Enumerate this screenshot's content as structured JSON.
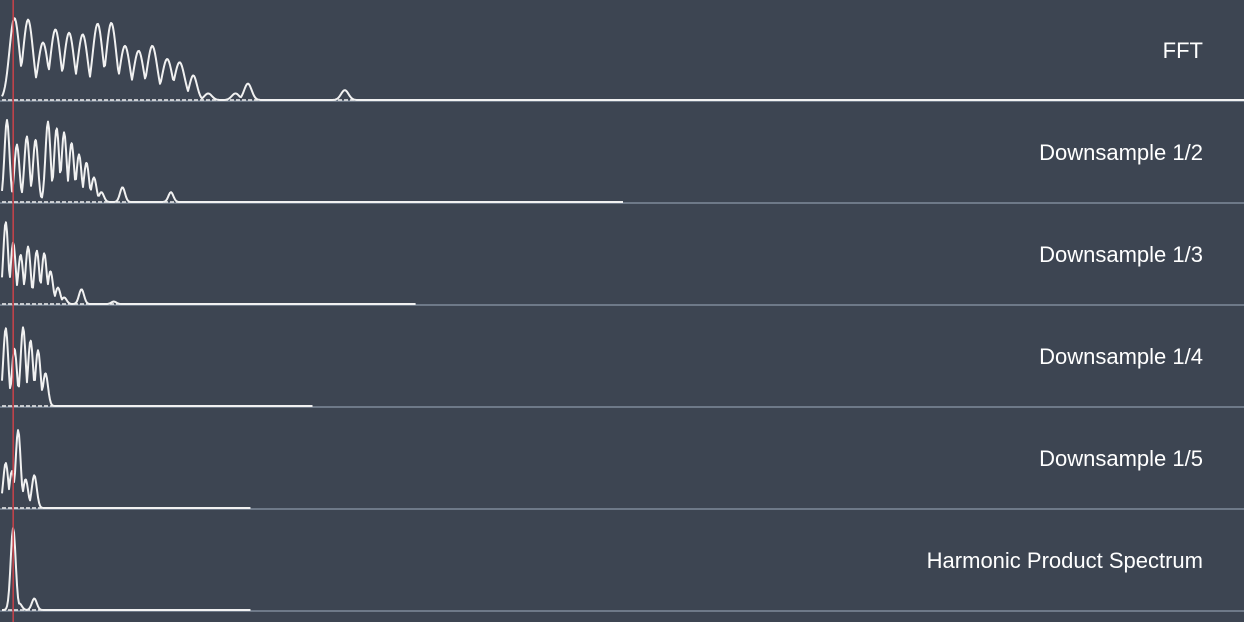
{
  "colors": {
    "background": "#3d4552",
    "trace": "#f1f1f1",
    "baseline": "#6e7988",
    "marker": "#c8434a"
  },
  "chart_data": [
    {
      "type": "line",
      "title": "FFT",
      "x_extent": 1,
      "grid": false,
      "legend": "none",
      "peaks": [
        [
          0.01,
          1.0,
          0.004
        ],
        [
          0.021,
          0.98,
          0.004
        ],
        [
          0.033,
          0.7,
          0.004
        ],
        [
          0.043,
          0.86,
          0.004
        ],
        [
          0.054,
          0.82,
          0.004
        ],
        [
          0.065,
          0.8,
          0.004
        ],
        [
          0.077,
          0.93,
          0.004
        ],
        [
          0.088,
          0.94,
          0.004
        ],
        [
          0.099,
          0.66,
          0.004
        ],
        [
          0.11,
          0.6,
          0.004
        ],
        [
          0.121,
          0.66,
          0.004
        ],
        [
          0.133,
          0.5,
          0.004
        ],
        [
          0.143,
          0.46,
          0.004
        ],
        [
          0.154,
          0.3,
          0.003
        ],
        [
          0.166,
          0.08,
          0.003
        ],
        [
          0.188,
          0.08,
          0.003
        ],
        [
          0.198,
          0.2,
          0.003
        ],
        [
          0.276,
          0.12,
          0.003
        ]
      ]
    },
    {
      "type": "line",
      "title": "Downsample 1/2",
      "x_extent": 0.5,
      "grid": false,
      "legend": "none",
      "peaks": [
        [
          0.004,
          1.0,
          0.002
        ],
        [
          0.012,
          0.7,
          0.002
        ],
        [
          0.02,
          0.8,
          0.002
        ],
        [
          0.027,
          0.76,
          0.002
        ],
        [
          0.037,
          0.98,
          0.002
        ],
        [
          0.044,
          0.9,
          0.002
        ],
        [
          0.05,
          0.85,
          0.002
        ],
        [
          0.056,
          0.72,
          0.002
        ],
        [
          0.062,
          0.58,
          0.002
        ],
        [
          0.068,
          0.48,
          0.002
        ],
        [
          0.074,
          0.3,
          0.002
        ],
        [
          0.08,
          0.12,
          0.002
        ],
        [
          0.097,
          0.18,
          0.002
        ],
        [
          0.136,
          0.12,
          0.002
        ]
      ]
    },
    {
      "type": "line",
      "title": "Downsample 1/3",
      "x_extent": 0.333,
      "grid": false,
      "legend": "none",
      "peaks": [
        [
          0.003,
          1.0,
          0.002
        ],
        [
          0.009,
          0.75,
          0.002
        ],
        [
          0.015,
          0.6,
          0.002
        ],
        [
          0.021,
          0.7,
          0.002
        ],
        [
          0.028,
          0.65,
          0.002
        ],
        [
          0.034,
          0.62,
          0.002
        ],
        [
          0.039,
          0.4,
          0.002
        ],
        [
          0.045,
          0.2,
          0.002
        ],
        [
          0.05,
          0.08,
          0.002
        ],
        [
          0.064,
          0.18,
          0.002
        ],
        [
          0.09,
          0.03,
          0.002
        ]
      ]
    },
    {
      "type": "line",
      "title": "Downsample 1/4",
      "x_extent": 0.25,
      "grid": false,
      "legend": "none",
      "peaks": [
        [
          0.003,
          0.95,
          0.002
        ],
        [
          0.01,
          0.7,
          0.002
        ],
        [
          0.017,
          0.96,
          0.002
        ],
        [
          0.023,
          0.8,
          0.002
        ],
        [
          0.029,
          0.68,
          0.002
        ],
        [
          0.035,
          0.4,
          0.002
        ]
      ]
    },
    {
      "type": "line",
      "title": "Downsample 1/5",
      "x_extent": 0.2,
      "grid": false,
      "legend": "none",
      "peaks": [
        [
          0.003,
          0.55,
          0.002
        ],
        [
          0.008,
          0.45,
          0.002
        ],
        [
          0.013,
          0.95,
          0.002
        ],
        [
          0.019,
          0.35,
          0.002
        ],
        [
          0.026,
          0.4,
          0.002
        ]
      ]
    },
    {
      "type": "line",
      "title": "Harmonic Product Spectrum",
      "x_extent": 0.2,
      "grid": false,
      "legend": "none",
      "peaks": [
        [
          0.009,
          1.0,
          0.002
        ],
        [
          0.014,
          0.08,
          0.002
        ],
        [
          0.026,
          0.14,
          0.002
        ]
      ]
    }
  ],
  "marker": {
    "x": 0.009
  }
}
